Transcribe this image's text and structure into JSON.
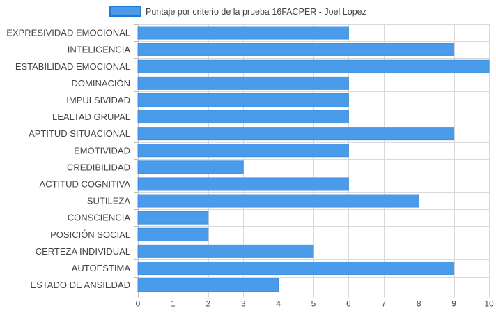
{
  "chart_data": {
    "type": "bar",
    "orientation": "horizontal",
    "legend": {
      "position": "top",
      "color": "#4a9bea",
      "border_color": "#1f78d1"
    },
    "series": [
      {
        "name": "Puntaje por criterio de la prueba 16FACPER - Joel Lopez",
        "values": [
          6,
          9,
          10,
          6,
          6,
          6,
          9,
          6,
          3,
          6,
          8,
          2,
          2,
          5,
          9,
          4
        ]
      }
    ],
    "categories": [
      "EXPRESIVIDAD EMOCIONAL",
      "INTELIGENCIA",
      "ESTABILIDAD EMOCIONAL",
      "DOMINACIÓN",
      "IMPULSIVIDAD",
      "LEALTAD GRUPAL",
      "APTITUD SITUACIONAL",
      "EMOTIVIDAD",
      "CREDIBILIDAD",
      "ACTITUD COGNITIVA",
      "SUTILEZA",
      "CONSCIENCIA",
      "POSICIÓN SOCIAL",
      "CERTEZA INDIVIDUAL",
      "AUTOESTIMA",
      "ESTADO DE ANSIEDAD"
    ],
    "xlim": [
      0,
      10
    ],
    "x_ticks": [
      "0",
      "1",
      "2",
      "3",
      "4",
      "5",
      "6",
      "7",
      "8",
      "9",
      "10"
    ],
    "grid": true,
    "colors": {
      "bar_fill": "#4a9bea",
      "bar_border": "#3f8fe0",
      "grid": "#d9d9d9",
      "text": "#444444"
    }
  }
}
